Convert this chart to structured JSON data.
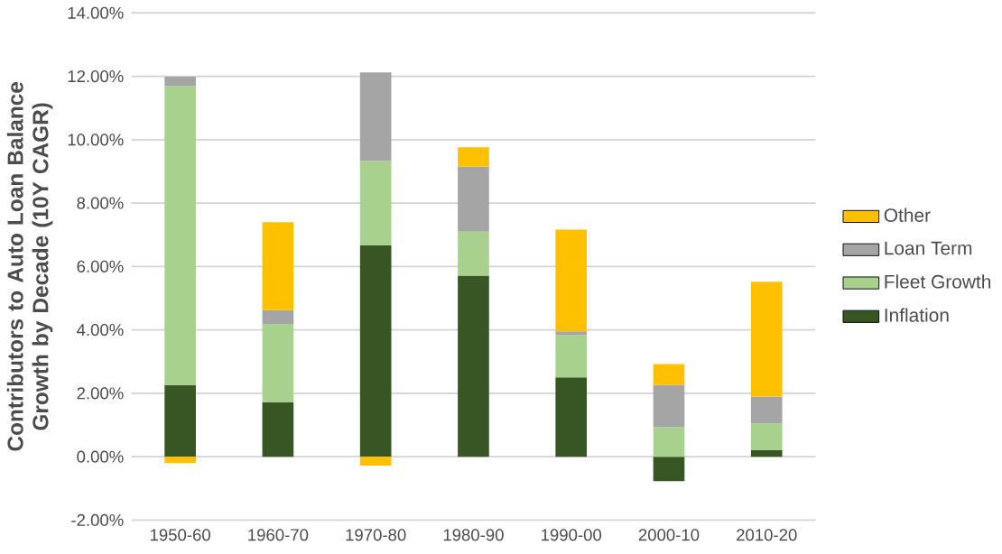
{
  "chart_data": {
    "type": "bar",
    "stacked": true,
    "ylabel": "Contributors to Auto Loan Balance Growth by Decade (10Y CAGR)",
    "categories": [
      "1950-60",
      "1960-70",
      "1970-80",
      "1980-90",
      "1990-00",
      "2000-10",
      "2010-20"
    ],
    "series": [
      {
        "name": "Inflation",
        "color": "#375623",
        "values": [
          2.26,
          1.71,
          6.67,
          5.71,
          2.5,
          -0.77,
          0.2
        ]
      },
      {
        "name": "Fleet Growth",
        "color": "#a9d18e",
        "values": [
          9.43,
          2.48,
          2.66,
          1.39,
          1.33,
          0.93,
          0.85
        ]
      },
      {
        "name": "Loan Term",
        "color": "#a5a5a5",
        "values": [
          0.3,
          0.43,
          2.79,
          2.05,
          0.12,
          1.33,
          0.85
        ]
      },
      {
        "name": "Other",
        "color": "#ffc000",
        "values": [
          -0.2,
          2.78,
          -0.28,
          0.61,
          3.21,
          0.66,
          3.62
        ]
      }
    ],
    "ylim": [
      -2,
      14
    ],
    "yticks": [
      {
        "value": -2,
        "label": "-2.00%"
      },
      {
        "value": 0,
        "label": "0.00%"
      },
      {
        "value": 2,
        "label": "2.00%"
      },
      {
        "value": 4,
        "label": "4.00%"
      },
      {
        "value": 6,
        "label": "6.00%"
      },
      {
        "value": 8,
        "label": "8.00%"
      },
      {
        "value": 10,
        "label": "10.00%"
      },
      {
        "value": 12,
        "label": "12.00%"
      },
      {
        "value": 14,
        "label": "14.00%"
      }
    ],
    "grid": "y",
    "legend": "right"
  }
}
